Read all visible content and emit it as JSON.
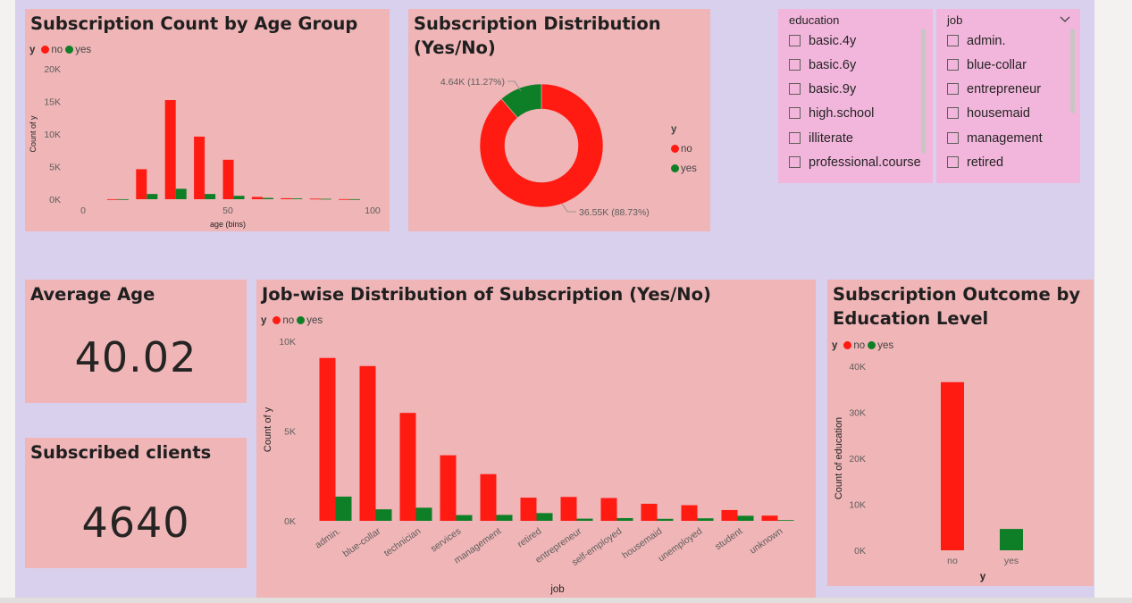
{
  "colors": {
    "no": "#ff1a12",
    "yes": "#0e7f26",
    "card": "#efb5b7",
    "canvas": "#d9d0ee",
    "slicer": "#f2b6dc"
  },
  "legend": {
    "title": "y",
    "no": "no",
    "yes": "yes"
  },
  "age_chart": {
    "title": "Subscription Count by Age Group",
    "chart_data": {
      "type": "bar",
      "xlabel": "age (bins)",
      "ylabel": "Count of y",
      "xlim": [
        0,
        100
      ],
      "ylim": [
        0,
        20000
      ],
      "x_ticks": [
        "0",
        "50",
        "100"
      ],
      "y_ticks": [
        "0K",
        "5K",
        "10K",
        "15K",
        "20K"
      ],
      "categories": [
        "10",
        "20",
        "30",
        "40",
        "50",
        "60",
        "70",
        "80",
        "90"
      ],
      "series": [
        {
          "name": "no",
          "values": [
            10,
            4600,
            15200,
            9600,
            6050,
            350,
            150,
            80,
            20
          ]
        },
        {
          "name": "yes",
          "values": [
            5,
            800,
            1600,
            800,
            520,
            200,
            120,
            60,
            10
          ]
        }
      ]
    }
  },
  "donut_chart": {
    "title_line1": "Subscription Distribution",
    "title_line2": "(Yes/No)",
    "label_yes": "4.64K (11.27%)",
    "label_no": "36.55K (88.73%)",
    "chart_data": {
      "type": "pie",
      "categories": [
        "no",
        "yes"
      ],
      "values": [
        36550,
        4640
      ]
    }
  },
  "slicer_education": {
    "title": "education",
    "items": [
      "basic.4y",
      "basic.6y",
      "basic.9y",
      "high.school",
      "illiterate",
      "professional.course"
    ]
  },
  "slicer_job": {
    "title": "job",
    "items": [
      "admin.",
      "blue-collar",
      "entrepreneur",
      "housemaid",
      "management",
      "retired"
    ]
  },
  "kpi_avg_age": {
    "title": "Average Age",
    "value": "40.02"
  },
  "kpi_subscribed": {
    "title": "Subscribed clients",
    "value": "4640"
  },
  "job_chart": {
    "title": "Job-wise Distribution of Subscription (Yes/No)",
    "chart_data": {
      "type": "bar",
      "xlabel": "job",
      "ylabel": "Count of y",
      "ylim": [
        0,
        10000
      ],
      "y_ticks": [
        "0K",
        "5K",
        "10K"
      ],
      "categories": [
        "admin.",
        "blue-collar",
        "technician",
        "services",
        "management",
        "retired",
        "entrepreneur",
        "self-employed",
        "housemaid",
        "unemployed",
        "student",
        "unknown"
      ],
      "series": [
        {
          "name": "no",
          "values": [
            9070,
            8620,
            6010,
            3650,
            2600,
            1290,
            1330,
            1270,
            950,
            870,
            600,
            290
          ]
        },
        {
          "name": "yes",
          "values": [
            1350,
            640,
            730,
            320,
            330,
            430,
            120,
            150,
            110,
            140,
            280,
            40
          ]
        }
      ]
    }
  },
  "edu_chart": {
    "title_line1": "Subscription Outcome by",
    "title_line2": "Education Level",
    "chart_data": {
      "type": "bar",
      "xlabel": "y",
      "ylabel": "Count of education",
      "ylim": [
        0,
        40000
      ],
      "y_ticks": [
        "0K",
        "10K",
        "20K",
        "30K",
        "40K"
      ],
      "categories": [
        "no",
        "yes"
      ],
      "values": [
        36550,
        4640
      ]
    }
  }
}
